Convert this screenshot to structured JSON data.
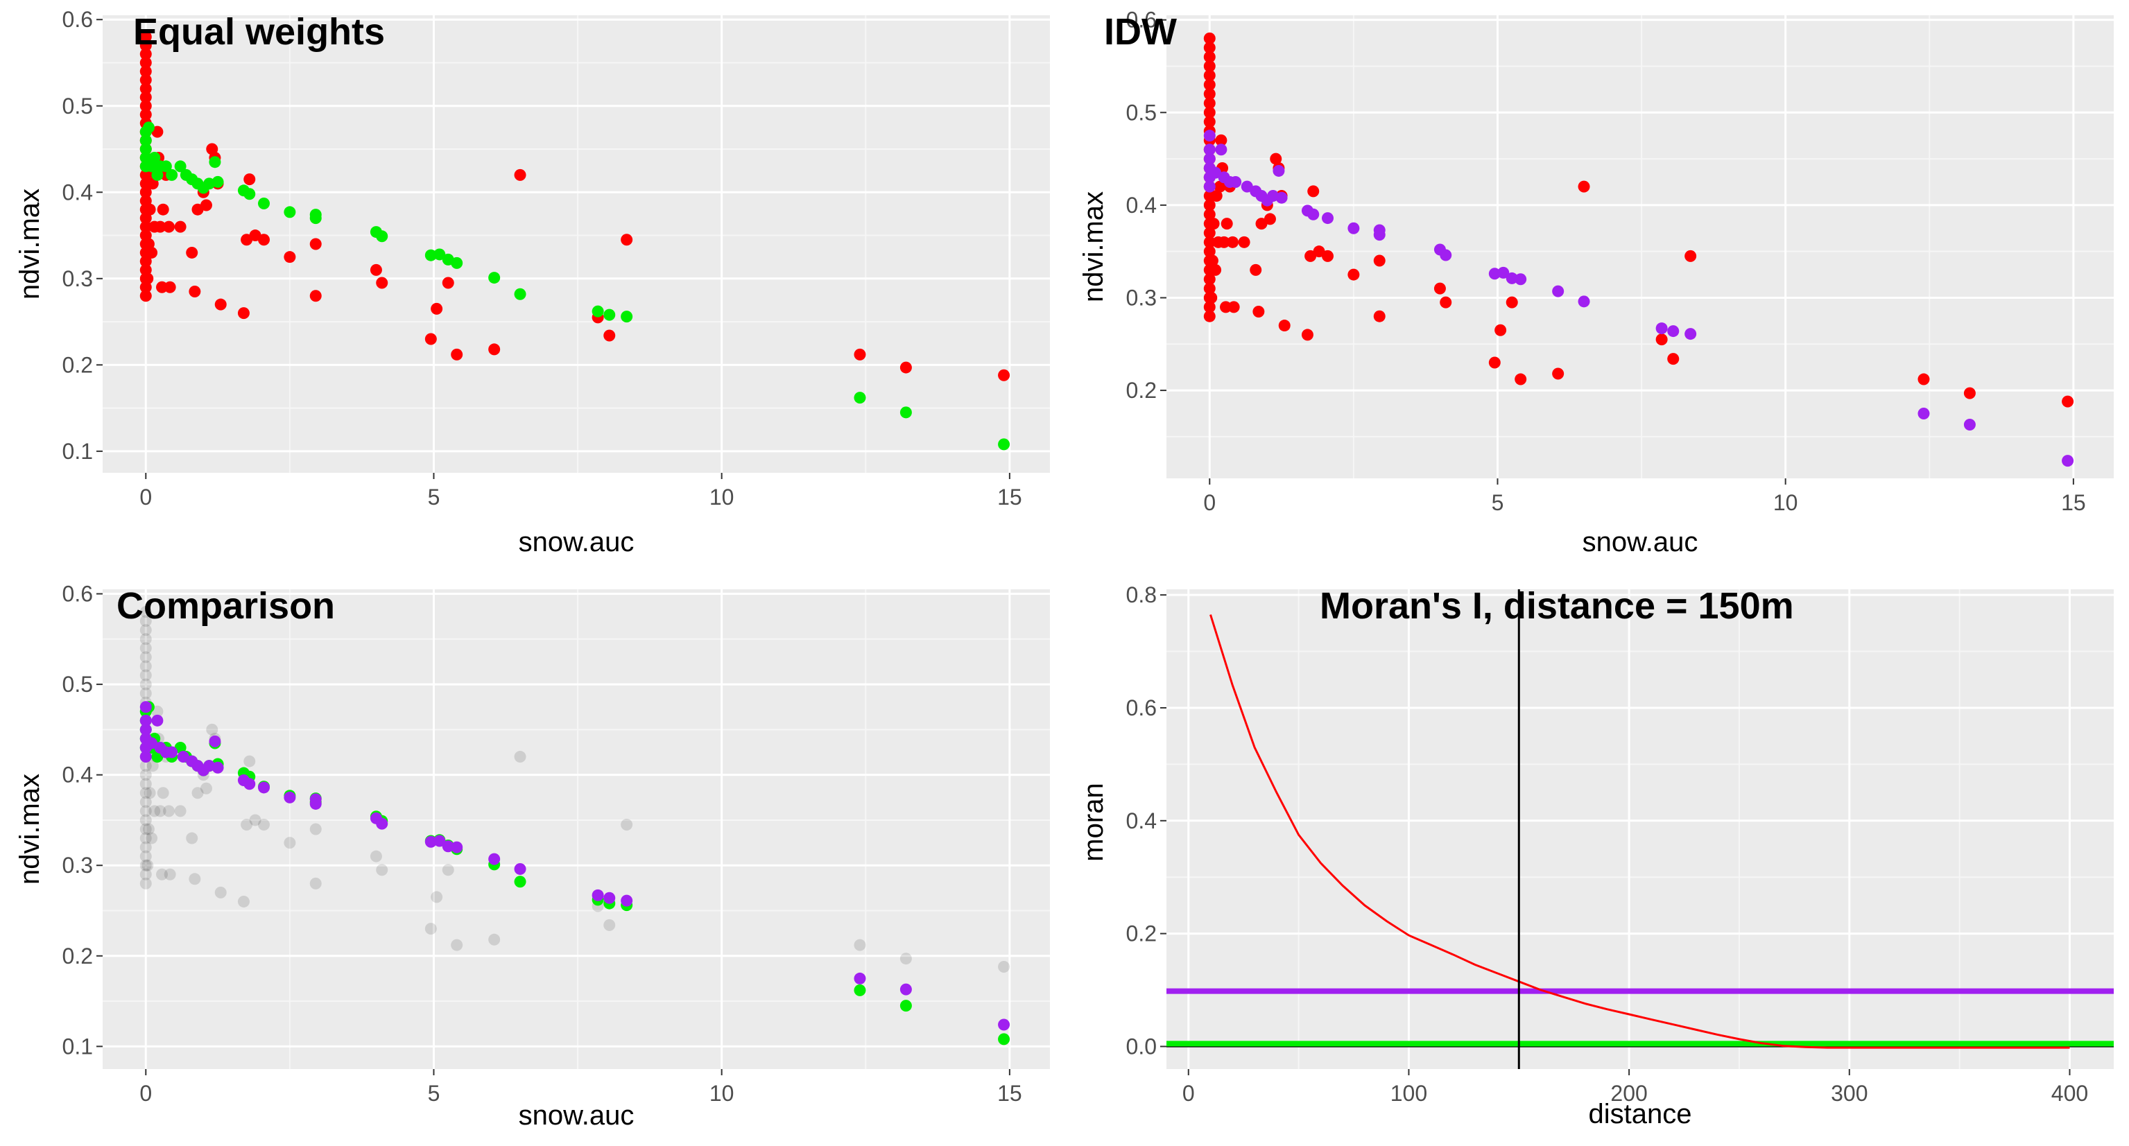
{
  "colors": {
    "panel_bg": "#ebebeb",
    "grid_major": "#ffffff",
    "observed": "#ff0000",
    "equal_weights": "#00ee00",
    "idw": "#a020f0",
    "observed_faded": "#000000",
    "moran_line": "#ff0000",
    "vline": "#000000"
  },
  "chart_data": [
    {
      "id": "equal",
      "type": "scatter",
      "title": "Equal weights",
      "xlabel": "snow.auc",
      "ylabel": "ndvi.max",
      "xlim": [
        -0.75,
        15.7
      ],
      "ylim": [
        0.075,
        0.605
      ],
      "xticks": [
        0,
        5,
        10,
        15
      ],
      "yticks": [
        0.1,
        0.2,
        0.3,
        0.4,
        0.5,
        0.6
      ],
      "ytick_labels": [
        "0.1",
        "0.2",
        "0.3",
        "0.4",
        "0.5",
        "0.6"
      ],
      "grid": true,
      "series": [
        {
          "key": "observed",
          "color": "#ff0000",
          "alpha": 1,
          "points": "observed"
        },
        {
          "key": "equal",
          "color": "#00ee00",
          "alpha": 1,
          "points": "equal"
        }
      ]
    },
    {
      "id": "idw",
      "type": "scatter",
      "title": "IDW",
      "xlabel": "snow.auc",
      "ylabel": "ndvi.max",
      "xlim": [
        -0.75,
        15.7
      ],
      "ylim": [
        0.105,
        0.605
      ],
      "xticks": [
        0,
        5,
        10,
        15
      ],
      "yticks": [
        0.2,
        0.3,
        0.4,
        0.5,
        0.6
      ],
      "ytick_labels": [
        "0.2",
        "0.3",
        "0.4",
        "0.5",
        "0.6"
      ],
      "grid": true,
      "series": [
        {
          "key": "observed",
          "color": "#ff0000",
          "alpha": 1,
          "points": "observed"
        },
        {
          "key": "idw",
          "color": "#a020f0",
          "alpha": 1,
          "points": "idw"
        }
      ]
    },
    {
      "id": "comparison",
      "type": "scatter",
      "title": "Comparison",
      "xlabel": "snow.auc",
      "ylabel": "ndvi.max",
      "xlim": [
        -0.75,
        15.7
      ],
      "ylim": [
        0.075,
        0.605
      ],
      "xticks": [
        0,
        5,
        10,
        15
      ],
      "yticks": [
        0.1,
        0.2,
        0.3,
        0.4,
        0.5,
        0.6
      ],
      "ytick_labels": [
        "0.1",
        "0.2",
        "0.3",
        "0.4",
        "0.5",
        "0.6"
      ],
      "grid": true,
      "series": [
        {
          "key": "observed",
          "color": "#000000",
          "alpha": 0.12,
          "points": "observed"
        },
        {
          "key": "equal",
          "color": "#00ee00",
          "alpha": 1,
          "points": "equal"
        },
        {
          "key": "idw",
          "color": "#a020f0",
          "alpha": 1,
          "points": "idw"
        }
      ]
    },
    {
      "id": "moran",
      "type": "line",
      "title": "Moran's I, distance = 150m",
      "xlabel": "distance",
      "ylabel": "moran",
      "xlim": [
        -10,
        420
      ],
      "ylim": [
        -0.04,
        0.81
      ],
      "xticks": [
        0,
        100,
        200,
        300,
        400
      ],
      "yticks": [
        0.0,
        0.2,
        0.4,
        0.6,
        0.8
      ],
      "ytick_labels": [
        "0.0",
        "0.2",
        "0.4",
        "0.6",
        "0.8"
      ],
      "grid": true,
      "moran_curve": {
        "x": [
          10,
          20,
          30,
          40,
          50,
          60,
          70,
          80,
          90,
          100,
          110,
          120,
          130,
          140,
          150,
          160,
          170,
          180,
          190,
          200,
          210,
          220,
          230,
          240,
          250,
          260,
          270,
          280,
          290,
          300,
          310,
          320,
          330,
          340,
          350,
          360,
          370,
          380,
          390,
          400
        ],
        "y": [
          0.765,
          0.64,
          0.53,
          0.45,
          0.375,
          0.325,
          0.285,
          0.25,
          0.222,
          0.197,
          0.18,
          0.163,
          0.145,
          0.13,
          0.115,
          0.1,
          0.088,
          0.076,
          0.066,
          0.057,
          0.048,
          0.039,
          0.03,
          0.021,
          0.013,
          0.006,
          0.001,
          -0.001,
          -0.002,
          -0.002,
          -0.002,
          -0.002,
          -0.002,
          -0.002,
          -0.002,
          -0.002,
          -0.002,
          -0.002,
          -0.002,
          -0.002
        ]
      },
      "hlines": [
        {
          "key": "idw",
          "y": 0.098,
          "color": "#a020f0"
        },
        {
          "key": "equal",
          "y": 0.005,
          "color": "#00ee00"
        }
      ],
      "vline": {
        "x": 150,
        "color": "#000000"
      },
      "zero_line": {
        "y": 0.0,
        "color": "#000000"
      }
    }
  ],
  "points": {
    "observed": [
      [
        0,
        0.28
      ],
      [
        0,
        0.29
      ],
      [
        0,
        0.3
      ],
      [
        0,
        0.31
      ],
      [
        0,
        0.32
      ],
      [
        0,
        0.33
      ],
      [
        0,
        0.34
      ],
      [
        0,
        0.35
      ],
      [
        0,
        0.36
      ],
      [
        0,
        0.37
      ],
      [
        0,
        0.38
      ],
      [
        0,
        0.39
      ],
      [
        0,
        0.4
      ],
      [
        0,
        0.41
      ],
      [
        0,
        0.42
      ],
      [
        0,
        0.43
      ],
      [
        0,
        0.44
      ],
      [
        0,
        0.45
      ],
      [
        0,
        0.46
      ],
      [
        0,
        0.47
      ],
      [
        0,
        0.48
      ],
      [
        0,
        0.49
      ],
      [
        0,
        0.5
      ],
      [
        0,
        0.51
      ],
      [
        0,
        0.52
      ],
      [
        0,
        0.53
      ],
      [
        0,
        0.54
      ],
      [
        0,
        0.55
      ],
      [
        0,
        0.56
      ],
      [
        0,
        0.57
      ],
      [
        0,
        0.58
      ],
      [
        0.03,
        0.3
      ],
      [
        0.05,
        0.34
      ],
      [
        0.07,
        0.38
      ],
      [
        0.1,
        0.33
      ],
      [
        0.12,
        0.41
      ],
      [
        0.15,
        0.36
      ],
      [
        0.18,
        0.42
      ],
      [
        0.2,
        0.47
      ],
      [
        0.22,
        0.44
      ],
      [
        0.25,
        0.36
      ],
      [
        0.28,
        0.29
      ],
      [
        0.3,
        0.38
      ],
      [
        0.35,
        0.42
      ],
      [
        0.4,
        0.36
      ],
      [
        0.42,
        0.29
      ],
      [
        0.6,
        0.36
      ],
      [
        0.8,
        0.33
      ],
      [
        0.85,
        0.285
      ],
      [
        0.9,
        0.38
      ],
      [
        1.0,
        0.4
      ],
      [
        1.05,
        0.385
      ],
      [
        1.15,
        0.45
      ],
      [
        1.2,
        0.44
      ],
      [
        1.25,
        0.41
      ],
      [
        1.3,
        0.27
      ],
      [
        1.7,
        0.26
      ],
      [
        1.75,
        0.345
      ],
      [
        1.8,
        0.415
      ],
      [
        1.9,
        0.35
      ],
      [
        2.05,
        0.345
      ],
      [
        2.5,
        0.325
      ],
      [
        2.95,
        0.34
      ],
      [
        2.95,
        0.28
      ],
      [
        4.0,
        0.31
      ],
      [
        4.1,
        0.295
      ],
      [
        4.95,
        0.23
      ],
      [
        5.05,
        0.265
      ],
      [
        5.25,
        0.295
      ],
      [
        5.4,
        0.212
      ],
      [
        6.05,
        0.218
      ],
      [
        6.5,
        0.42
      ],
      [
        7.85,
        0.255
      ],
      [
        8.05,
        0.234
      ],
      [
        8.35,
        0.345
      ],
      [
        12.4,
        0.212
      ],
      [
        13.2,
        0.197
      ],
      [
        14.9,
        0.188
      ]
    ],
    "equal": [
      [
        0,
        0.47
      ],
      [
        0,
        0.46
      ],
      [
        0,
        0.45
      ],
      [
        0,
        0.44
      ],
      [
        0,
        0.43
      ],
      [
        0.05,
        0.475
      ],
      [
        0.1,
        0.43
      ],
      [
        0.15,
        0.44
      ],
      [
        0.2,
        0.42
      ],
      [
        0.25,
        0.43
      ],
      [
        0.35,
        0.43
      ],
      [
        0.45,
        0.42
      ],
      [
        0.6,
        0.43
      ],
      [
        0.7,
        0.42
      ],
      [
        0.8,
        0.415
      ],
      [
        0.9,
        0.41
      ],
      [
        1.0,
        0.405
      ],
      [
        1.1,
        0.41
      ],
      [
        1.2,
        0.435
      ],
      [
        1.25,
        0.412
      ],
      [
        1.7,
        0.402
      ],
      [
        1.8,
        0.398
      ],
      [
        2.05,
        0.387
      ],
      [
        2.5,
        0.377
      ],
      [
        2.95,
        0.374
      ],
      [
        2.95,
        0.37
      ],
      [
        4.0,
        0.354
      ],
      [
        4.1,
        0.349
      ],
      [
        4.95,
        0.327
      ],
      [
        5.1,
        0.328
      ],
      [
        5.25,
        0.322
      ],
      [
        5.4,
        0.318
      ],
      [
        6.05,
        0.301
      ],
      [
        6.5,
        0.282
      ],
      [
        7.85,
        0.262
      ],
      [
        8.05,
        0.258
      ],
      [
        8.35,
        0.256
      ],
      [
        12.4,
        0.162
      ],
      [
        13.2,
        0.145
      ],
      [
        14.9,
        0.108
      ]
    ],
    "idw": [
      [
        0,
        0.475
      ],
      [
        0,
        0.46
      ],
      [
        0,
        0.45
      ],
      [
        0,
        0.44
      ],
      [
        0,
        0.43
      ],
      [
        0,
        0.42
      ],
      [
        0.1,
        0.435
      ],
      [
        0.2,
        0.46
      ],
      [
        0.25,
        0.43
      ],
      [
        0.35,
        0.425
      ],
      [
        0.45,
        0.425
      ],
      [
        0.65,
        0.42
      ],
      [
        0.8,
        0.415
      ],
      [
        0.9,
        0.41
      ],
      [
        1.0,
        0.405
      ],
      [
        1.1,
        0.41
      ],
      [
        1.2,
        0.437
      ],
      [
        1.25,
        0.408
      ],
      [
        1.7,
        0.394
      ],
      [
        1.8,
        0.39
      ],
      [
        2.05,
        0.386
      ],
      [
        2.5,
        0.375
      ],
      [
        2.95,
        0.373
      ],
      [
        2.95,
        0.368
      ],
      [
        4.0,
        0.352
      ],
      [
        4.1,
        0.346
      ],
      [
        4.95,
        0.326
      ],
      [
        5.1,
        0.327
      ],
      [
        5.25,
        0.321
      ],
      [
        5.4,
        0.32
      ],
      [
        6.05,
        0.307
      ],
      [
        6.5,
        0.296
      ],
      [
        7.85,
        0.267
      ],
      [
        8.05,
        0.264
      ],
      [
        8.35,
        0.261
      ],
      [
        12.4,
        0.175
      ],
      [
        13.2,
        0.163
      ],
      [
        14.9,
        0.124
      ]
    ]
  }
}
